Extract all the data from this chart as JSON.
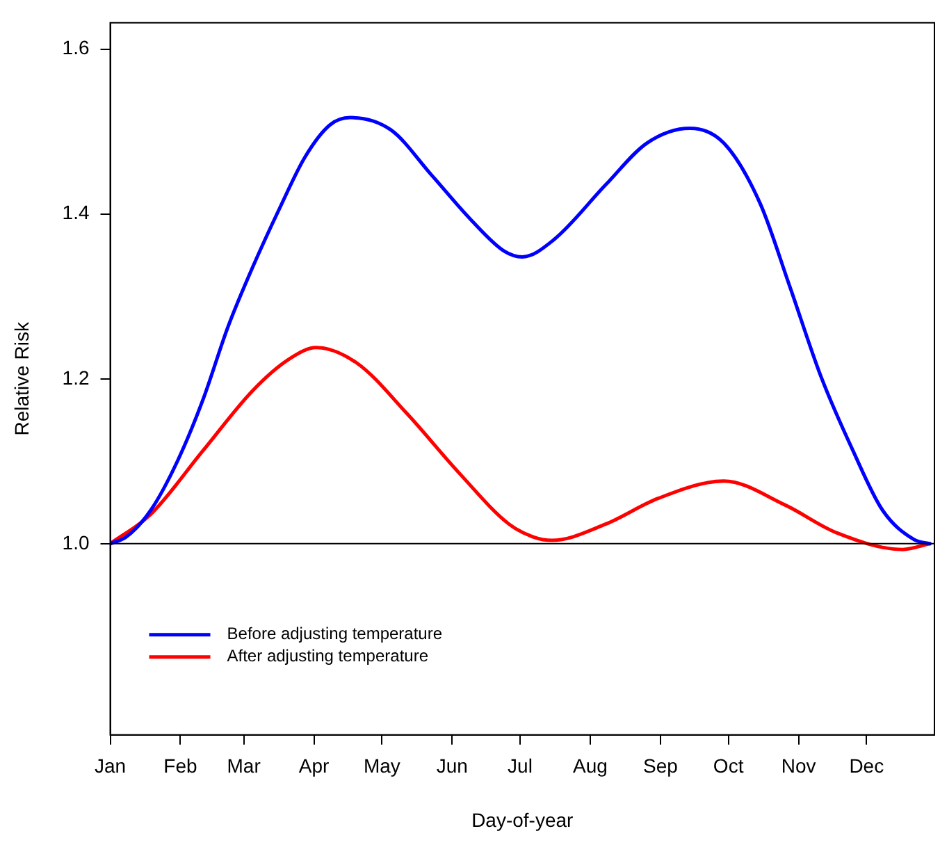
{
  "chart_data": {
    "type": "line",
    "xlabel": "Day-of-year",
    "ylabel": "Relative Risk",
    "xlim": [
      "--01-01",
      "--12-31"
    ],
    "xticks": [
      {
        "value": "--01-01",
        "label": "Jan"
      },
      {
        "value": "--02-01",
        "label": "Feb"
      },
      {
        "value": "--03-01",
        "label": "Mar"
      },
      {
        "value": "--04-01",
        "label": "Apr"
      },
      {
        "value": "--05-01",
        "label": "May"
      },
      {
        "value": "--06-01",
        "label": "Jun"
      },
      {
        "value": "--07-01",
        "label": "Jul"
      },
      {
        "value": "--08-01",
        "label": "Aug"
      },
      {
        "value": "--09-01",
        "label": "Sep"
      },
      {
        "value": "--10-01",
        "label": "Oct"
      },
      {
        "value": "--11-01",
        "label": "Nov"
      },
      {
        "value": "--12-01",
        "label": "Dec"
      }
    ],
    "ylim": [
      0.768,
      1.632
    ],
    "yticks": [
      {
        "value": 1,
        "label": "1.0"
      },
      {
        "value": 1.2,
        "label": "1.2"
      },
      {
        "value": 1.4,
        "label": "1.4"
      },
      {
        "value": 1.6,
        "label": "1.6"
      }
    ],
    "series": [
      {
        "name": "Before adjusting temperature",
        "color": "#0000ff",
        "x": [
          "--01-01",
          "--01-08",
          "--01-19",
          "--01-31",
          "--02-11",
          "--02-22",
          "--03-05",
          "--03-17",
          "--03-28",
          "--04-08",
          "--04-17",
          "--05-05",
          "--05-23",
          "--06-10",
          "--06-24",
          "--07-02",
          "--07-16",
          "--08-08",
          "--08-26",
          "--09-14",
          "--09-29",
          "--10-15",
          "--10-28",
          "--11-11",
          "--11-25",
          "--12-08",
          "--12-22",
          "--12-29"
        ],
        "values": [
          1.0,
          1.008,
          1.041,
          1.102,
          1.175,
          1.263,
          1.336,
          1.408,
          1.469,
          1.508,
          1.517,
          1.502,
          1.447,
          1.391,
          1.355,
          1.348,
          1.369,
          1.436,
          1.486,
          1.504,
          1.486,
          1.413,
          1.313,
          1.202,
          1.113,
          1.041,
          1.005,
          1.0
        ]
      },
      {
        "name": "After adjusting temperature",
        "color": "#ff0000",
        "x": [
          "--01-01",
          "--01-19",
          "--02-11",
          "--03-05",
          "--03-21",
          "--04-02",
          "--04-20",
          "--05-12",
          "--06-04",
          "--06-26",
          "--07-07",
          "--07-15",
          "--08-08",
          "--08-31",
          "--09-29",
          "--10-26",
          "--11-18",
          "--12-17",
          "--12-29"
        ],
        "values": [
          1.0,
          1.036,
          1.113,
          1.186,
          1.224,
          1.238,
          1.219,
          1.158,
          1.086,
          1.024,
          1.008,
          1.004,
          1.024,
          1.055,
          1.076,
          1.047,
          1.013,
          0.993,
          1.0
        ]
      }
    ],
    "ref_lines": [
      {
        "axis": "y",
        "value": 1,
        "color": "#000000"
      }
    ],
    "legend": "bottom left",
    "grid": false,
    "marker": "none",
    "line_style": "solid"
  }
}
